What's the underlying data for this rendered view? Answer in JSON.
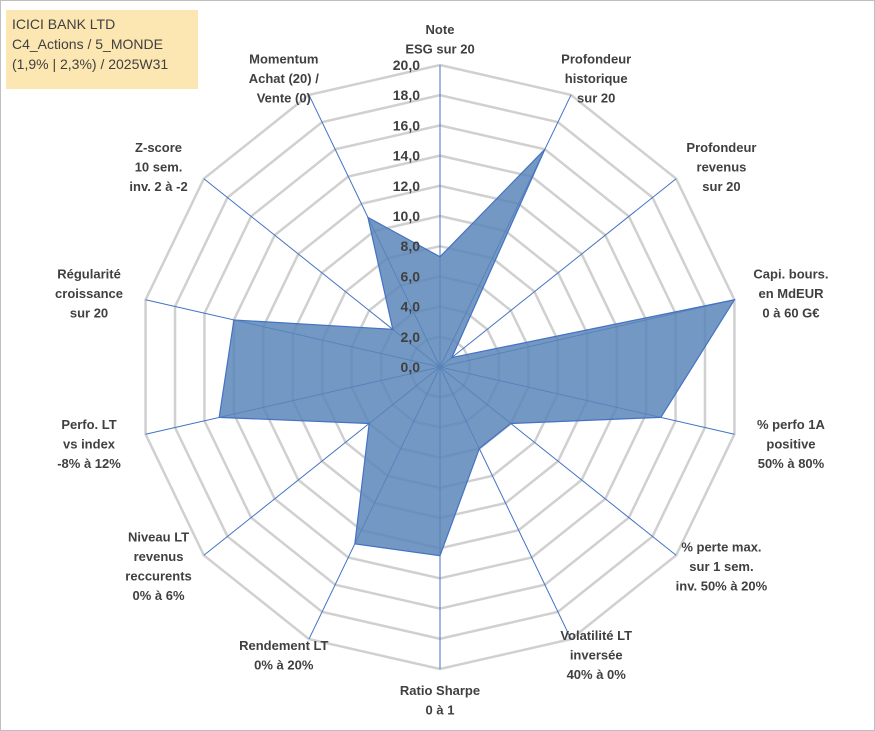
{
  "title": {
    "line1": "ICICI BANK LTD",
    "line2": "C4_Actions / 5_MONDE",
    "line3": "(1,9% | 2,3%) / 2025W31"
  },
  "chart_data": {
    "type": "radar",
    "range": [
      0,
      20
    ],
    "step": 2,
    "grid": true,
    "ticks": [
      "0,0",
      "2,0",
      "4,0",
      "6,0",
      "8,0",
      "10,0",
      "12,0",
      "14,0",
      "16,0",
      "18,0",
      "20,0"
    ],
    "axes": [
      {
        "label": [
          "Note",
          "ESG sur 20"
        ],
        "value": 7.3
      },
      {
        "label": [
          "Profondeur",
          "historique",
          "sur 20"
        ],
        "value": 16.0
      },
      {
        "label": [
          "Profondeur",
          "revenus",
          "sur 20"
        ],
        "value": 1.0
      },
      {
        "label": [
          "Capi. bours.",
          "en MdEUR",
          "0 à 60 G€"
        ],
        "value": 20.0
      },
      {
        "label": [
          "% perfo 1A",
          "positive",
          "50% à 80%"
        ],
        "value": 15.0
      },
      {
        "label": [
          "% perte max.",
          "sur 1 sem.",
          "inv. 50% à 20%"
        ],
        "value": 6.0
      },
      {
        "label": [
          "Volatilité LT",
          "inversée",
          "40% à 0%"
        ],
        "value": 6.0
      },
      {
        "label": [
          "Ratio Sharpe",
          "0 à 1"
        ],
        "value": 12.5
      },
      {
        "label": [
          "Rendement LT",
          "0% à 20%"
        ],
        "value": 13.0
      },
      {
        "label": [
          "Niveau LT",
          "revenus",
          "reccurents",
          "0% à 6%"
        ],
        "value": 6.0
      },
      {
        "label": [
          "Perfo. LT",
          "vs index",
          "-8% à 12%"
        ],
        "value": 15.0
      },
      {
        "label": [
          "Régularité",
          "croissance",
          "sur 20"
        ],
        "value": 14.0
      },
      {
        "label": [
          "Z-score",
          "10 sem.",
          "inv. 2 à -2"
        ],
        "value": 4.0
      },
      {
        "label": [
          "Momentum",
          "Achat (20) /",
          "Vente (0)"
        ],
        "value": 11.0
      }
    ],
    "colors": {
      "fill": "#5a86b8",
      "line": "#4472c4",
      "grid": "#d0d0d0",
      "spoke": "#4472c4"
    }
  }
}
